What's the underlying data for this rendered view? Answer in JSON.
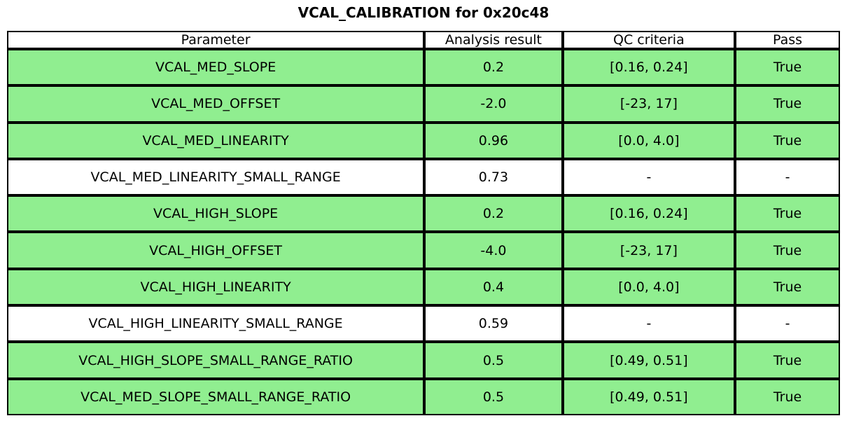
{
  "chart_data": {
    "type": "table",
    "title": "VCAL_CALIBRATION for 0x20c48",
    "columns": [
      "Parameter",
      "Analysis result",
      "QC criteria",
      "Pass"
    ],
    "rows": [
      {
        "parameter": "VCAL_MED_SLOPE",
        "result": "0.2",
        "criteria": "[0.16, 0.24]",
        "pass": "True",
        "highlighted": true
      },
      {
        "parameter": "VCAL_MED_OFFSET",
        "result": "-2.0",
        "criteria": "[-23, 17]",
        "pass": "True",
        "highlighted": true
      },
      {
        "parameter": "VCAL_MED_LINEARITY",
        "result": "0.96",
        "criteria": "[0.0, 4.0]",
        "pass": "True",
        "highlighted": true
      },
      {
        "parameter": "VCAL_MED_LINEARITY_SMALL_RANGE",
        "result": "0.73",
        "criteria": "-",
        "pass": "-",
        "highlighted": false
      },
      {
        "parameter": "VCAL_HIGH_SLOPE",
        "result": "0.2",
        "criteria": "[0.16, 0.24]",
        "pass": "True",
        "highlighted": true
      },
      {
        "parameter": "VCAL_HIGH_OFFSET",
        "result": "-4.0",
        "criteria": "[-23, 17]",
        "pass": "True",
        "highlighted": true
      },
      {
        "parameter": "VCAL_HIGH_LINEARITY",
        "result": "0.4",
        "criteria": "[0.0, 4.0]",
        "pass": "True",
        "highlighted": true
      },
      {
        "parameter": "VCAL_HIGH_LINEARITY_SMALL_RANGE",
        "result": "0.59",
        "criteria": "-",
        "pass": "-",
        "highlighted": false
      },
      {
        "parameter": "VCAL_HIGH_SLOPE_SMALL_RANGE_RATIO",
        "result": "0.5",
        "criteria": "[0.49, 0.51]",
        "pass": "True",
        "highlighted": true
      },
      {
        "parameter": "VCAL_MED_SLOPE_SMALL_RANGE_RATIO",
        "result": "0.5",
        "criteria": "[0.49, 0.51]",
        "pass": "True",
        "highlighted": true
      }
    ],
    "layout": {
      "legend": "none",
      "grid": "cell-borders",
      "highlight_meaning": "row passes QC"
    },
    "colors": {
      "pass_row": "#90EE90",
      "default_row": "#ffffff",
      "border": "#000000",
      "text": "#000000",
      "background": "#ffffff"
    }
  }
}
